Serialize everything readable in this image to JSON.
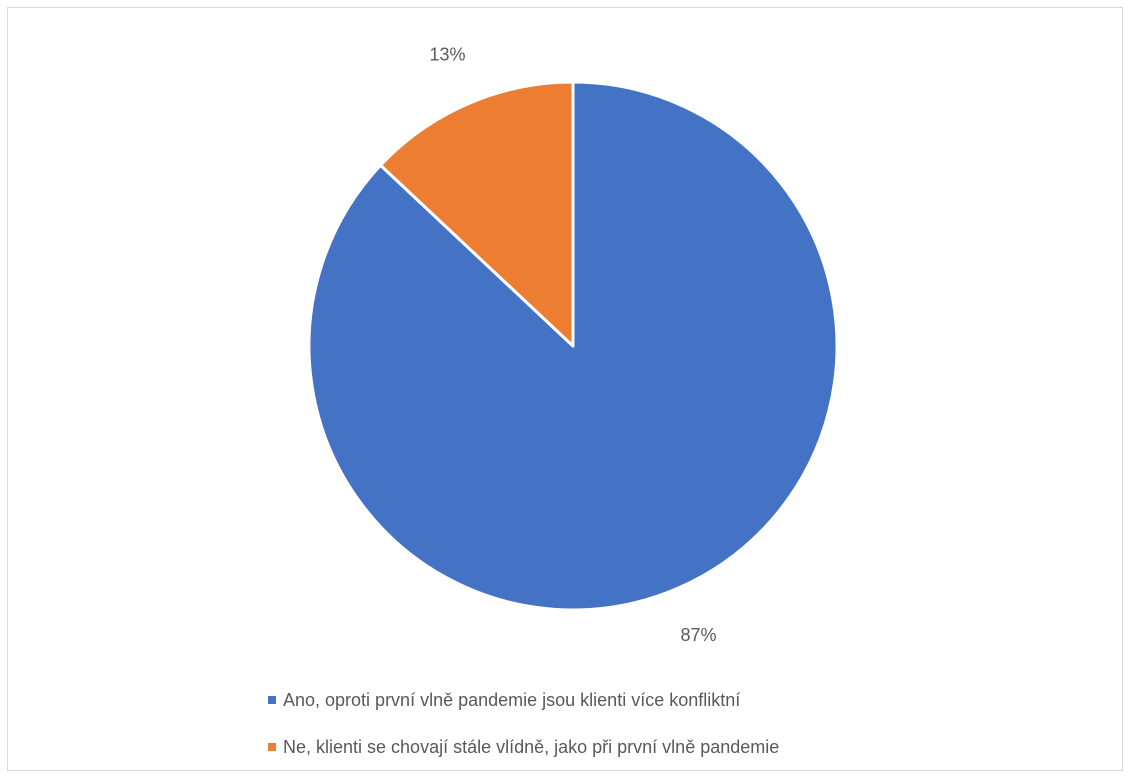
{
  "chart_data": {
    "type": "pie",
    "categories": [
      "Ano, oproti první vlně pandemie jsou klienti více konfliktní",
      "Ne, klienti se chovají stále vlídně, jako při první vlně pandemie"
    ],
    "values": [
      87,
      13
    ],
    "data_labels": [
      "87%",
      "13%"
    ],
    "colors": [
      "#4472C4",
      "#ED7D31"
    ],
    "legend_position": "bottom",
    "title": ""
  }
}
